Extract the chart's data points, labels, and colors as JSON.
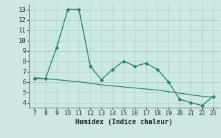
{
  "xlabel": "Humidex (Indice chaleur)",
  "x_data": [
    7,
    8,
    9,
    10,
    11,
    12,
    13,
    14,
    15,
    16,
    17,
    18,
    19,
    20,
    21,
    22,
    23
  ],
  "y_main": [
    6.3,
    6.3,
    9.3,
    13.0,
    13.0,
    7.5,
    6.2,
    7.2,
    8.0,
    7.5,
    7.8,
    7.2,
    6.0,
    4.3,
    4.0,
    3.7,
    4.6
  ],
  "y_trend": [
    6.4,
    6.3,
    6.2,
    6.1,
    6.0,
    5.85,
    5.7,
    5.6,
    5.5,
    5.4,
    5.3,
    5.2,
    5.05,
    4.9,
    4.75,
    4.6,
    4.5
  ],
  "line_color": "#2e7d6e",
  "bg_color": "#cce8e4",
  "grid_color": "#aad0cb",
  "xlim": [
    6.5,
    23.5
  ],
  "ylim": [
    3.5,
    13.5
  ],
  "yticks": [
    4,
    5,
    6,
    7,
    8,
    9,
    10,
    11,
    12,
    13
  ],
  "xticks": [
    7,
    8,
    9,
    10,
    11,
    12,
    13,
    14,
    15,
    16,
    17,
    18,
    19,
    20,
    21,
    22,
    23
  ]
}
